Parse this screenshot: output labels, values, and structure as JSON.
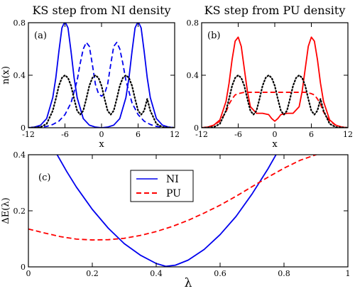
{
  "chart_data": [
    {
      "type": "line",
      "title": "KS step from NI density",
      "panel_label": "(a)",
      "xlabel": "x",
      "ylabel": "n(x)",
      "xlim": [
        -12,
        12
      ],
      "ylim": [
        0,
        0.8
      ],
      "x_ticks": [
        -12,
        -6,
        0,
        6,
        12
      ],
      "x_tick_labels": [
        "-12",
        "-6",
        "0",
        "6",
        "12"
      ],
      "y_ticks": [
        0,
        0.4,
        0.8
      ],
      "y_tick_labels": [
        "0",
        "0.4",
        "0.8"
      ],
      "series": [
        {
          "style": "solid",
          "color": "#0000ee",
          "x": [
            -12,
            -11,
            -10,
            -9,
            -8,
            -7.5,
            -7,
            -6.5,
            -6,
            -5.5,
            -5,
            -4.5,
            -4,
            -3,
            -2,
            -1,
            0,
            1,
            2,
            3,
            4,
            4.5,
            5,
            5.5,
            6,
            6.5,
            7,
            7.5,
            8,
            9,
            10,
            11,
            12
          ],
          "y": [
            0,
            0.005,
            0.02,
            0.07,
            0.23,
            0.38,
            0.58,
            0.76,
            0.81,
            0.76,
            0.58,
            0.38,
            0.23,
            0.07,
            0.02,
            0.005,
            0,
            0.005,
            0.02,
            0.07,
            0.23,
            0.38,
            0.58,
            0.76,
            0.81,
            0.76,
            0.58,
            0.38,
            0.23,
            0.07,
            0.02,
            0.005,
            0
          ]
        },
        {
          "style": "dashed",
          "color": "#0000ee",
          "x": [
            -12,
            -11,
            -10,
            -9,
            -8,
            -7,
            -6,
            -5,
            -4,
            -3.5,
            -3,
            -2.5,
            -2,
            -1.5,
            -1,
            -0.5,
            0,
            0.5,
            1,
            1.5,
            2,
            2.5,
            3,
            3.5,
            4,
            5,
            6,
            7,
            8,
            9,
            10,
            11,
            12
          ],
          "y": [
            0,
            0,
            0.005,
            0.01,
            0.025,
            0.05,
            0.1,
            0.19,
            0.36,
            0.49,
            0.6,
            0.65,
            0.62,
            0.48,
            0.33,
            0.26,
            0.24,
            0.26,
            0.33,
            0.48,
            0.62,
            0.65,
            0.6,
            0.49,
            0.36,
            0.19,
            0.1,
            0.05,
            0.025,
            0.01,
            0.005,
            0,
            0
          ]
        },
        {
          "style": "dotted",
          "color": "#000000",
          "x": [
            -12,
            -10,
            -9,
            -8,
            -7.5,
            -7,
            -6.5,
            -6,
            -5.5,
            -5,
            -4.5,
            -4,
            -3.5,
            -3,
            -2.5,
            -2,
            -1.5,
            -1,
            -0.5,
            0,
            0.5,
            1,
            1.5,
            2,
            2.5,
            3,
            3.5,
            4,
            4.5,
            5,
            5.5,
            6,
            6.5,
            7,
            7.5,
            8,
            9,
            10,
            12
          ],
          "y": [
            0,
            0.005,
            0.03,
            0.13,
            0.22,
            0.32,
            0.38,
            0.4,
            0.38,
            0.32,
            0.22,
            0.13,
            0.1,
            0.13,
            0.22,
            0.32,
            0.38,
            0.4,
            0.38,
            0.32,
            0.22,
            0.13,
            0.1,
            0.13,
            0.22,
            0.32,
            0.38,
            0.4,
            0.38,
            0.32,
            0.22,
            0.13,
            0.1,
            0.13,
            0.22,
            0.13,
            0.03,
            0.005,
            0
          ]
        }
      ]
    },
    {
      "type": "line",
      "title": "KS step from PU density",
      "panel_label": "(b)",
      "xlabel": "x",
      "ylabel": "",
      "xlim": [
        -12,
        12
      ],
      "ylim": [
        0,
        0.8
      ],
      "x_ticks": [
        -12,
        -6,
        0,
        6,
        12
      ],
      "x_tick_labels": [
        "-12",
        "-6",
        "0",
        "6",
        "12"
      ],
      "y_ticks": [
        0,
        0.4,
        0.8
      ],
      "y_tick_labels": [
        "0",
        "0.4",
        "0.8"
      ],
      "series": [
        {
          "style": "solid",
          "color": "#ff0000",
          "x": [
            -12,
            -11,
            -10,
            -9,
            -8,
            -7.5,
            -7,
            -6.5,
            -6,
            -5.5,
            -5,
            -4.5,
            -4,
            -3,
            -2,
            -1,
            -0.5,
            0,
            0.5,
            1,
            2,
            3,
            4,
            4.5,
            5,
            5.5,
            6,
            6.5,
            7,
            7.5,
            8,
            9,
            10,
            11,
            12
          ],
          "y": [
            0,
            0.005,
            0.02,
            0.06,
            0.2,
            0.34,
            0.52,
            0.66,
            0.69,
            0.62,
            0.45,
            0.28,
            0.16,
            0.11,
            0.11,
            0.1,
            0.07,
            0.05,
            0.07,
            0.1,
            0.11,
            0.11,
            0.16,
            0.28,
            0.45,
            0.62,
            0.69,
            0.66,
            0.52,
            0.34,
            0.2,
            0.06,
            0.02,
            0.005,
            0
          ]
        },
        {
          "style": "dashed",
          "color": "#ff0000",
          "x": [
            -12,
            -11,
            -10,
            -9,
            -8,
            -7.5,
            -7,
            -6.5,
            -6,
            -5,
            -4,
            -2,
            0,
            2,
            4,
            5,
            6,
            6.5,
            7,
            7.5,
            8,
            9,
            10,
            11,
            12
          ],
          "y": [
            0,
            0.005,
            0.02,
            0.05,
            0.12,
            0.18,
            0.22,
            0.25,
            0.26,
            0.27,
            0.27,
            0.27,
            0.27,
            0.27,
            0.27,
            0.27,
            0.26,
            0.25,
            0.22,
            0.18,
            0.12,
            0.05,
            0.02,
            0.005,
            0
          ]
        },
        {
          "style": "dotted",
          "color": "#000000",
          "x": [
            -12,
            -10,
            -9,
            -8,
            -7.5,
            -7,
            -6.5,
            -6,
            -5.5,
            -5,
            -4.5,
            -4,
            -3.5,
            -3,
            -2.5,
            -2,
            -1.5,
            -1,
            -0.5,
            0,
            0.5,
            1,
            1.5,
            2,
            2.5,
            3,
            3.5,
            4,
            4.5,
            5,
            5.5,
            6,
            6.5,
            7,
            7.5,
            8,
            9,
            10,
            12
          ],
          "y": [
            0,
            0.005,
            0.03,
            0.13,
            0.22,
            0.32,
            0.38,
            0.4,
            0.38,
            0.32,
            0.22,
            0.13,
            0.1,
            0.13,
            0.22,
            0.32,
            0.38,
            0.4,
            0.38,
            0.32,
            0.22,
            0.13,
            0.1,
            0.13,
            0.22,
            0.32,
            0.38,
            0.4,
            0.38,
            0.32,
            0.22,
            0.13,
            0.1,
            0.13,
            0.22,
            0.13,
            0.03,
            0.005,
            0
          ]
        }
      ]
    },
    {
      "type": "line",
      "title": "",
      "panel_label": "(c)",
      "xlabel": "λ",
      "ylabel": "ΔE(λ)",
      "xlim": [
        0,
        1
      ],
      "ylim": [
        0,
        0.4
      ],
      "x_ticks": [
        0,
        0.2,
        0.4,
        0.6,
        0.8,
        1
      ],
      "x_tick_labels": [
        "0",
        "0.2",
        "0.4",
        "0.6",
        "0.8",
        "1"
      ],
      "y_ticks": [
        0,
        0.2,
        0.4
      ],
      "y_tick_labels": [
        "0",
        "0.2",
        "0.4"
      ],
      "legend": "upper-center",
      "series": [
        {
          "name": "NI",
          "style": "solid",
          "color": "#0000ee",
          "x": [
            0.09,
            0.12,
            0.15,
            0.2,
            0.25,
            0.3,
            0.35,
            0.4,
            0.43,
            0.46,
            0.5,
            0.55,
            0.6,
            0.65,
            0.7,
            0.75,
            0.78
          ],
          "y": [
            0.4,
            0.34,
            0.285,
            0.205,
            0.138,
            0.083,
            0.042,
            0.012,
            0.002,
            0.006,
            0.024,
            0.062,
            0.115,
            0.18,
            0.26,
            0.35,
            0.41
          ]
        },
        {
          "name": "PU",
          "style": "dashed",
          "color": "#ff0000",
          "x": [
            0,
            0.05,
            0.1,
            0.15,
            0.2,
            0.25,
            0.3,
            0.35,
            0.4,
            0.45,
            0.5,
            0.55,
            0.6,
            0.65,
            0.7,
            0.75,
            0.8,
            0.85,
            0.9,
            0.95,
            1
          ],
          "y": [
            0.135,
            0.121,
            0.108,
            0.099,
            0.096,
            0.097,
            0.102,
            0.112,
            0.126,
            0.144,
            0.166,
            0.192,
            0.22,
            0.252,
            0.286,
            0.32,
            0.352,
            0.38,
            0.4,
            0.42,
            0.44
          ]
        }
      ]
    }
  ]
}
